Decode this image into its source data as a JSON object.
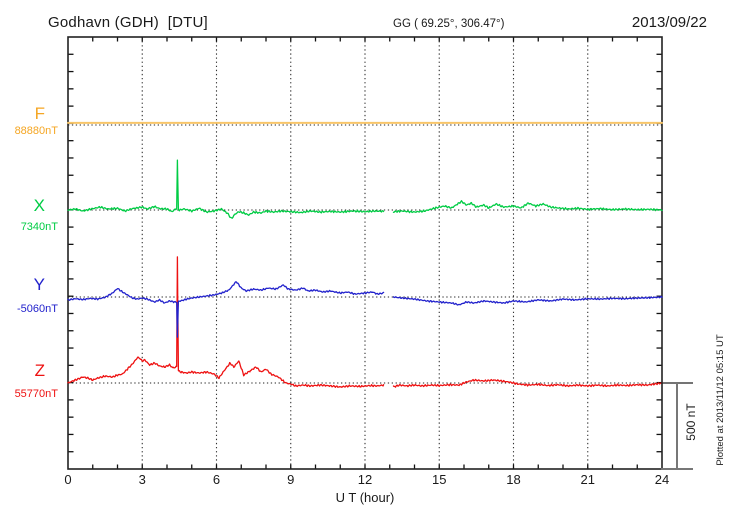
{
  "header": {
    "station_title": "Godhavn (GDH)  [DTU]",
    "coordinates": "GG ( 69.25°, 306.47°)",
    "date": "2013/09/22"
  },
  "x_axis": {
    "title": "U T (hour)",
    "tick_labels": [
      "0",
      "3",
      "6",
      "9",
      "12",
      "15",
      "18",
      "21",
      "24"
    ],
    "range_hours": [
      0,
      24
    ],
    "minor_tick_every_hours": 1,
    "major_gridline_every_hours": 3
  },
  "scale_bar": {
    "label": "500 nT",
    "span_nT": 500
  },
  "plotted_at_note": "Plotted at 2013/11/12 05:15 UT",
  "chart_data": {
    "type": "line",
    "title": "Godhavn (GDH) magnetogram, 2013/09/22",
    "x_unit": "UT hour",
    "x_range": [
      0,
      24
    ],
    "grid": "dotted vertical lines every 3 h; dotted horizontal baseline per channel",
    "y_division_nT": 100,
    "scale_bar_nT": 500,
    "data_gap_hours": [
      12.75,
      13.15
    ],
    "series": [
      {
        "channel": "F",
        "baseline_label": "88880nT",
        "baseline_nT": 88880,
        "color": "#f5a623",
        "trace_color": "#f8c568",
        "gaps": [],
        "points": [
          [
            0,
            12
          ],
          [
            24,
            12
          ]
        ]
      },
      {
        "channel": "X",
        "baseline_label": "7340nT",
        "baseline_nT": 7340,
        "color": "#00cc44",
        "trace_color": "#00cc44",
        "gaps": [
          [
            12.75,
            13.15
          ]
        ],
        "points": [
          [
            0,
            0
          ],
          [
            0.3,
            6
          ],
          [
            0.6,
            -6
          ],
          [
            1,
            8
          ],
          [
            1.3,
            17
          ],
          [
            1.6,
            6
          ],
          [
            2,
            10
          ],
          [
            2.3,
            -6
          ],
          [
            2.6,
            8
          ],
          [
            3,
            17
          ],
          [
            3.2,
            6
          ],
          [
            3.5,
            20
          ],
          [
            3.7,
            8
          ],
          [
            4,
            6
          ],
          [
            4.2,
            -10
          ],
          [
            4.35,
            6
          ],
          [
            4.39,
            8
          ],
          [
            4.42,
            290
          ],
          [
            4.46,
            2
          ],
          [
            4.5,
            0
          ],
          [
            4.7,
            6
          ],
          [
            5,
            -6
          ],
          [
            5.3,
            10
          ],
          [
            5.6,
            -12
          ],
          [
            5.9,
            -6
          ],
          [
            6.2,
            6
          ],
          [
            6.45,
            -20
          ],
          [
            6.6,
            -50
          ],
          [
            6.75,
            -25
          ],
          [
            6.9,
            -10
          ],
          [
            7.1,
            -17
          ],
          [
            7.3,
            -29
          ],
          [
            7.5,
            -12
          ],
          [
            7.8,
            -17
          ],
          [
            8,
            -6
          ],
          [
            8.3,
            -12
          ],
          [
            8.6,
            -6
          ],
          [
            9,
            -10
          ],
          [
            9.4,
            -15
          ],
          [
            9.8,
            -6
          ],
          [
            10.2,
            -12
          ],
          [
            10.6,
            -8
          ],
          [
            11,
            -12
          ],
          [
            11.5,
            -6
          ],
          [
            12,
            -10
          ],
          [
            12.4,
            -6
          ],
          [
            12.75,
            -8
          ],
          [
            13.15,
            -10
          ],
          [
            13.5,
            -6
          ],
          [
            14,
            -12
          ],
          [
            14.4,
            -6
          ],
          [
            14.8,
            10
          ],
          [
            15.2,
            23
          ],
          [
            15.5,
            12
          ],
          [
            15.9,
            50
          ],
          [
            16.1,
            29
          ],
          [
            16.3,
            40
          ],
          [
            16.5,
            17
          ],
          [
            16.8,
            29
          ],
          [
            17,
            12
          ],
          [
            17.3,
            35
          ],
          [
            17.6,
            17
          ],
          [
            18,
            23
          ],
          [
            18.3,
            12
          ],
          [
            18.6,
            40
          ],
          [
            18.9,
            23
          ],
          [
            19.2,
            35
          ],
          [
            19.5,
            17
          ],
          [
            19.8,
            12
          ],
          [
            20.2,
            6
          ],
          [
            20.6,
            10
          ],
          [
            21,
            4
          ],
          [
            21.5,
            8
          ],
          [
            22,
            2
          ],
          [
            22.5,
            6
          ],
          [
            23,
            2
          ],
          [
            23.5,
            4
          ],
          [
            24,
            0
          ]
        ]
      },
      {
        "channel": "Y",
        "baseline_label": "-5060nT",
        "baseline_nT": -5060,
        "color": "#2222cc",
        "trace_color": "#2222cc",
        "gaps": [
          [
            12.75,
            13.15
          ]
        ],
        "points": [
          [
            0,
            -17
          ],
          [
            0.3,
            -10
          ],
          [
            0.6,
            -15
          ],
          [
            0.9,
            -8
          ],
          [
            1.2,
            -12
          ],
          [
            1.5,
            -2
          ],
          [
            1.8,
            23
          ],
          [
            2,
            50
          ],
          [
            2.2,
            29
          ],
          [
            2.4,
            12
          ],
          [
            2.6,
            -6
          ],
          [
            2.8,
            -12
          ],
          [
            3,
            -6
          ],
          [
            3.2,
            -12
          ],
          [
            3.5,
            -29
          ],
          [
            3.7,
            -17
          ],
          [
            3.9,
            -35
          ],
          [
            4.1,
            -23
          ],
          [
            4.3,
            -29
          ],
          [
            4.39,
            -30
          ],
          [
            4.42,
            -233
          ],
          [
            4.46,
            -25
          ],
          [
            4.55,
            -23
          ],
          [
            4.8,
            -12
          ],
          [
            5,
            -6
          ],
          [
            5.3,
            0
          ],
          [
            5.6,
            6
          ],
          [
            5.9,
            12
          ],
          [
            6.2,
            23
          ],
          [
            6.5,
            40
          ],
          [
            6.8,
            90
          ],
          [
            7,
            52
          ],
          [
            7.2,
            35
          ],
          [
            7.5,
            46
          ],
          [
            7.8,
            40
          ],
          [
            8.1,
            52
          ],
          [
            8.4,
            46
          ],
          [
            8.7,
            70
          ],
          [
            8.9,
            46
          ],
          [
            9.2,
            40
          ],
          [
            9.5,
            52
          ],
          [
            9.7,
            35
          ],
          [
            10,
            40
          ],
          [
            10.3,
            29
          ],
          [
            10.6,
            35
          ],
          [
            11,
            23
          ],
          [
            11.3,
            29
          ],
          [
            11.6,
            17
          ],
          [
            12,
            23
          ],
          [
            12.3,
            29
          ],
          [
            12.5,
            17
          ],
          [
            12.75,
            23
          ],
          [
            13.15,
            0
          ],
          [
            13.5,
            -6
          ],
          [
            14,
            -12
          ],
          [
            14.5,
            -23
          ],
          [
            15,
            -29
          ],
          [
            15.5,
            -35
          ],
          [
            15.8,
            -46
          ],
          [
            16.1,
            -29
          ],
          [
            16.4,
            -35
          ],
          [
            16.8,
            -23
          ],
          [
            17.2,
            -29
          ],
          [
            17.6,
            -35
          ],
          [
            18,
            -23
          ],
          [
            18.5,
            -29
          ],
          [
            19,
            -17
          ],
          [
            19.5,
            -23
          ],
          [
            20,
            -12
          ],
          [
            20.5,
            -17
          ],
          [
            21,
            -10
          ],
          [
            21.5,
            -12
          ],
          [
            22,
            -8
          ],
          [
            22.5,
            -10
          ],
          [
            23,
            -6
          ],
          [
            23.5,
            -4
          ],
          [
            24,
            0
          ]
        ]
      },
      {
        "channel": "Z",
        "baseline_label": "55770nT",
        "baseline_nT": 55770,
        "color": "#ee1111",
        "trace_color": "#ee1111",
        "gaps": [
          [
            12.75,
            13.15
          ]
        ],
        "points": [
          [
            0,
            0
          ],
          [
            0.2,
            12
          ],
          [
            0.4,
            23
          ],
          [
            0.6,
            35
          ],
          [
            0.8,
            29
          ],
          [
            1,
            17
          ],
          [
            1.2,
            29
          ],
          [
            1.5,
            40
          ],
          [
            1.8,
            35
          ],
          [
            2,
            46
          ],
          [
            2.2,
            52
          ],
          [
            2.4,
            81
          ],
          [
            2.6,
            110
          ],
          [
            2.83,
            151
          ],
          [
            3,
            128
          ],
          [
            3.1,
            134
          ],
          [
            3.3,
            105
          ],
          [
            3.5,
            116
          ],
          [
            3.7,
            99
          ],
          [
            3.9,
            93
          ],
          [
            4.1,
            105
          ],
          [
            4.25,
            87
          ],
          [
            4.39,
            95
          ],
          [
            4.42,
            733
          ],
          [
            4.46,
            70
          ],
          [
            4.55,
            64
          ],
          [
            4.8,
            58
          ],
          [
            5,
            64
          ],
          [
            5.3,
            58
          ],
          [
            5.6,
            64
          ],
          [
            5.9,
            52
          ],
          [
            6.1,
            29
          ],
          [
            6.3,
            70
          ],
          [
            6.55,
            116
          ],
          [
            6.7,
            93
          ],
          [
            6.9,
            128
          ],
          [
            7.1,
            46
          ],
          [
            7.35,
            70
          ],
          [
            7.6,
            93
          ],
          [
            7.8,
            64
          ],
          [
            8,
            81
          ],
          [
            8.2,
            52
          ],
          [
            8.5,
            35
          ],
          [
            8.8,
            0
          ],
          [
            9,
            -6
          ],
          [
            9.2,
            -17
          ],
          [
            9.5,
            -12
          ],
          [
            9.8,
            -17
          ],
          [
            10.2,
            -12
          ],
          [
            10.6,
            -17
          ],
          [
            11,
            -23
          ],
          [
            11.4,
            -17
          ],
          [
            11.8,
            -20
          ],
          [
            12.2,
            -15
          ],
          [
            12.5,
            -17
          ],
          [
            12.75,
            -12
          ],
          [
            13.15,
            -23
          ],
          [
            13.4,
            -12
          ],
          [
            13.7,
            -17
          ],
          [
            14,
            -12
          ],
          [
            14.3,
            -17
          ],
          [
            14.7,
            -12
          ],
          [
            15,
            -15
          ],
          [
            15.4,
            -10
          ],
          [
            15.8,
            -12
          ],
          [
            16.1,
            6
          ],
          [
            16.4,
            17
          ],
          [
            16.8,
            12
          ],
          [
            17.2,
            17
          ],
          [
            17.5,
            12
          ],
          [
            17.8,
            6
          ],
          [
            18.2,
            -6
          ],
          [
            18.6,
            -12
          ],
          [
            19,
            -8
          ],
          [
            19.4,
            -15
          ],
          [
            19.8,
            -10
          ],
          [
            20.2,
            -17
          ],
          [
            20.6,
            -12
          ],
          [
            21,
            -17
          ],
          [
            21.4,
            -12
          ],
          [
            21.8,
            -17
          ],
          [
            22.2,
            -12
          ],
          [
            22.6,
            -15
          ],
          [
            23,
            -10
          ],
          [
            23.4,
            -12
          ],
          [
            23.7,
            -6
          ],
          [
            24,
            0
          ]
        ]
      }
    ]
  }
}
